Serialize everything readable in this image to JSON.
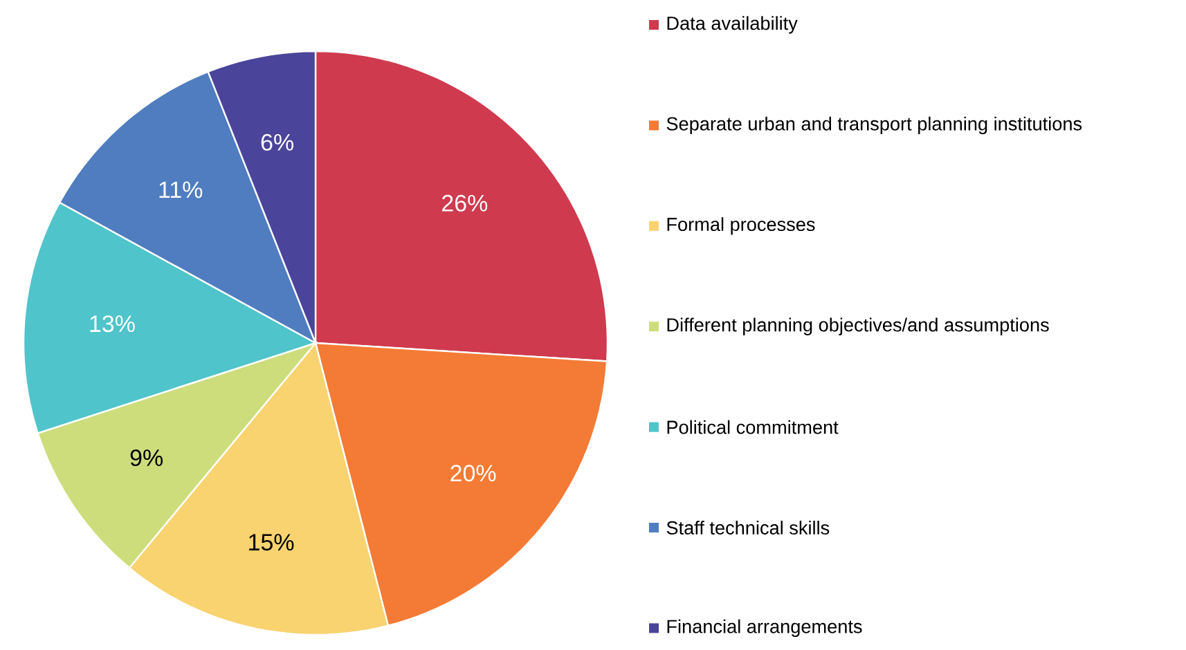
{
  "chart_data": {
    "type": "pie",
    "categories": [
      "Data availability",
      "Separate urban and transport planning institutions",
      "Formal processes",
      "Different planning objectives/and assumptions",
      "Political commitment",
      "Staff technical skills",
      "Financial arrangements"
    ],
    "values": [
      26,
      20,
      15,
      9,
      13,
      11,
      6
    ],
    "value_labels": [
      "26%",
      "20%",
      "15%",
      "9%",
      "13%",
      "11%",
      "6%"
    ],
    "colors": [
      "#cf3a4e",
      "#f47b35",
      "#f9d370",
      "#cddd7b",
      "#4fc4ca",
      "#4f7dc0",
      "#4b449b"
    ],
    "legend": "right"
  }
}
